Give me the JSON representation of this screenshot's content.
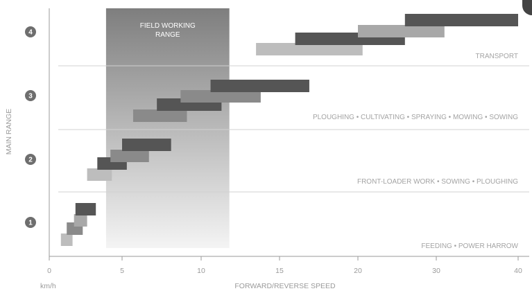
{
  "chart_data": {
    "type": "bar",
    "xlabel": "FORWARD/REVERSE SPEED",
    "x_unit": "km/h",
    "ylabel": "MAIN RANGE",
    "xlim": [
      0,
      40
    ],
    "xticks": [
      0,
      5,
      10,
      15,
      20,
      30,
      40
    ],
    "xtick_labels": [
      "0",
      "5",
      "10",
      "15",
      "20",
      "30",
      "40"
    ],
    "x_axis_note": "axis is non-linear: 0–20 km/h occupies a wider span than 20–40 km/h",
    "main_ranges": [
      "1",
      "2",
      "3",
      "4"
    ],
    "field_working_range": {
      "label_line1": "FIELD WORKING",
      "label_line2": "RANGE",
      "from": 3.9,
      "to": 11.8
    },
    "categories": [
      {
        "range": "1",
        "label": "FEEDING • POWER HARROW"
      },
      {
        "range": "2",
        "label": "FRONT-LOADER WORK • SOWING • PLOUGHING"
      },
      {
        "range": "3",
        "label": "PLOUGHING • CULTIVATING • SPRAYING • MOWING • SOWING"
      },
      {
        "range": "4",
        "label": "TRANSPORT"
      }
    ],
    "series": [
      {
        "range": "1",
        "gear": 1,
        "from": 0.8,
        "to": 1.6,
        "color": "#bdbdbd"
      },
      {
        "range": "1",
        "gear": 2,
        "from": 1.2,
        "to": 2.3,
        "color": "#8a8a8a"
      },
      {
        "range": "1",
        "gear": 3,
        "from": 1.7,
        "to": 2.6,
        "color": "#a8a8a8"
      },
      {
        "range": "1",
        "gear": 4,
        "from": 1.8,
        "to": 3.2,
        "color": "#555555"
      },
      {
        "range": "2",
        "gear": 1,
        "from": 2.6,
        "to": 4.3,
        "color": "#bdbdbd"
      },
      {
        "range": "2",
        "gear": 2,
        "from": 3.3,
        "to": 5.3,
        "color": "#555555"
      },
      {
        "range": "2",
        "gear": 3,
        "from": 4.2,
        "to": 6.7,
        "color": "#8a8a8a"
      },
      {
        "range": "2",
        "gear": 4,
        "from": 5.0,
        "to": 8.1,
        "color": "#555555"
      },
      {
        "range": "3",
        "gear": 1,
        "from": 5.7,
        "to": 9.1,
        "color": "#8a8a8a"
      },
      {
        "range": "3",
        "gear": 2,
        "from": 7.2,
        "to": 11.3,
        "color": "#555555"
      },
      {
        "range": "3",
        "gear": 3,
        "from": 8.7,
        "to": 13.8,
        "color": "#8a8a8a"
      },
      {
        "range": "3",
        "gear": 4,
        "from": 10.6,
        "to": 16.9,
        "color": "#555555"
      },
      {
        "range": "4",
        "gear": 1,
        "from": 13.5,
        "to": 20.6,
        "color": "#bdbdbd"
      },
      {
        "range": "4",
        "gear": 2,
        "from": 16.0,
        "to": 26.0,
        "color": "#555555"
      },
      {
        "range": "4",
        "gear": 3,
        "from": 20.0,
        "to": 31.0,
        "color": "#a8a8a8"
      },
      {
        "range": "4",
        "gear": 4,
        "from": 26.0,
        "to": 40.0,
        "color": "#555555"
      }
    ],
    "grid": true,
    "colors": {
      "axis": "#9a9a9a",
      "grid": "#d0d0d0",
      "range_marker": "#6e6e6e",
      "field_band_top": "#7e7e7e",
      "field_band_bottom": "#f4f4f4"
    }
  }
}
